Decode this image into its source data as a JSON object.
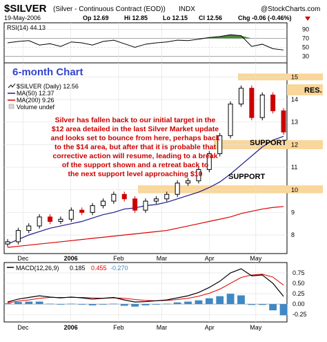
{
  "header": {
    "symbol": "$SILVER",
    "description": "(Silver - Continuous Contract (EOD))",
    "exchange": "INDX",
    "brand": "@StockCharts.com",
    "date": "19-May-2006",
    "open": "Op 12.69",
    "high": "Hi 12.85",
    "low": "Lo 12.15",
    "close": "Cl 12.56",
    "change": "Chg -0.06 (-0.46%)",
    "change_arrow": "down-triangle-icon"
  },
  "rsi": {
    "label": "RSI(14) 44.13",
    "ticks": [
      "90",
      "70",
      "50",
      "30"
    ],
    "tick_values": [
      90,
      70,
      50,
      30
    ],
    "overbought": 70,
    "oversold": 30,
    "fill_color": "#4a8a3c"
  },
  "price": {
    "title_text": "6-month Chart",
    "legend": {
      "main": "$SILVER (Daily) 12.56",
      "ma50": "MA(50) 12.37",
      "ma200": "MA(200) 9.26",
      "volume": "Volume undef"
    },
    "ticks": [
      "15",
      "14",
      "13",
      "12",
      "11",
      "10",
      "9",
      "8"
    ],
    "tick_values": [
      15,
      14,
      13,
      12,
      11,
      10,
      9,
      8
    ],
    "ylim": [
      7.3,
      15.5
    ],
    "res_label": "RES.",
    "support_labels": [
      "SUPPORT",
      "SUPPORT"
    ],
    "bands": [
      {
        "from": 14.85,
        "to": 15.15,
        "color": "#f9d69a"
      },
      {
        "from": 11.8,
        "to": 12.2,
        "color": "#f9d69a"
      },
      {
        "from": 9.85,
        "to": 10.2,
        "color": "#f9d69a"
      }
    ],
    "commentary": [
      "Silver has fallen back to our initial target in the",
      "$12 area detailed in the last Silver Market update",
      "and looks set to bounce from here, perhaps back",
      "to the $14 area, but after that it is probable that",
      "corrective action will resume, leading to a break",
      "of the support shown and a retreat  back to",
      "the next support level approaching $10"
    ],
    "colors": {
      "up": "#000000",
      "down": "#cc0000",
      "ma50": "#1a1a8c",
      "ma200": "#dd0000"
    }
  },
  "macd": {
    "label_prefix": "MACD(12,26,9)",
    "macd_value": "0.185",
    "signal_value": "0.455",
    "hist_value": "-0.270",
    "ticks": [
      "0.75",
      "0.50",
      "0.25",
      "0.00",
      "-0.25"
    ],
    "tick_values": [
      0.75,
      0.5,
      0.25,
      0.0,
      -0.25
    ],
    "ylim": [
      -0.38,
      0.95
    ],
    "colors": {
      "macd": "#000000",
      "signal": "#dd0000",
      "hist": "#3f88c5"
    }
  },
  "x_axis": {
    "labels": [
      "Dec",
      "2006",
      "Feb",
      "Mar",
      "Apr",
      "May"
    ],
    "bold": [
      false,
      true,
      false,
      false,
      false,
      false
    ]
  },
  "chart_data": {
    "type": "line",
    "x": [
      "2005-11-21",
      "2005-11-28",
      "2005-12-05",
      "2005-12-12",
      "2005-12-19",
      "2005-12-27",
      "2006-01-03",
      "2006-01-09",
      "2006-01-17",
      "2006-01-23",
      "2006-01-30",
      "2006-02-06",
      "2006-02-13",
      "2006-02-21",
      "2006-02-27",
      "2006-03-06",
      "2006-03-13",
      "2006-03-20",
      "2006-03-27",
      "2006-04-03",
      "2006-04-10",
      "2006-04-17",
      "2006-04-24",
      "2006-05-01",
      "2006-05-08",
      "2006-05-15",
      "2006-05-19"
    ],
    "series": [
      {
        "name": "$SILVER (Daily) 12.56",
        "values": [
          7.7,
          8.2,
          8.4,
          8.8,
          8.6,
          8.7,
          9.1,
          9.0,
          9.3,
          9.5,
          9.8,
          9.6,
          9.1,
          9.5,
          9.6,
          9.8,
          10.3,
          10.4,
          10.9,
          11.6,
          12.4,
          13.8,
          14.5,
          13.2,
          14.2,
          13.5,
          12.56
        ]
      },
      {
        "name": "MA(50) 12.37",
        "values": [
          7.6,
          7.8,
          8.0,
          8.15,
          8.3,
          8.4,
          8.5,
          8.6,
          8.75,
          8.9,
          9.0,
          9.15,
          9.2,
          9.3,
          9.35,
          9.45,
          9.6,
          9.75,
          9.9,
          10.1,
          10.35,
          10.7,
          11.1,
          11.5,
          11.9,
          12.2,
          12.37
        ]
      },
      {
        "name": "MA(200) 9.26",
        "values": [
          7.45,
          7.5,
          7.55,
          7.6,
          7.65,
          7.7,
          7.75,
          7.8,
          7.85,
          7.9,
          7.95,
          8.0,
          8.05,
          8.1,
          8.15,
          8.2,
          8.3,
          8.4,
          8.5,
          8.6,
          8.7,
          8.8,
          8.95,
          9.05,
          9.15,
          9.22,
          9.26
        ]
      }
    ],
    "rsi_values": [
      60,
      63,
      65,
      55,
      58,
      52,
      62,
      60,
      55,
      63,
      66,
      58,
      50,
      57,
      60,
      62,
      66,
      65,
      68,
      72,
      74,
      78,
      76,
      52,
      57,
      47,
      44.13
    ],
    "macd_values": [
      0.05,
      0.12,
      0.16,
      0.2,
      0.17,
      0.15,
      0.17,
      0.15,
      0.12,
      0.14,
      0.16,
      0.1,
      0.05,
      0.06,
      0.08,
      0.1,
      0.15,
      0.2,
      0.28,
      0.4,
      0.55,
      0.75,
      0.85,
      0.68,
      0.7,
      0.5,
      0.185
    ],
    "signal_values": [
      0.03,
      0.07,
      0.1,
      0.14,
      0.16,
      0.16,
      0.16,
      0.16,
      0.15,
      0.14,
      0.15,
      0.14,
      0.11,
      0.09,
      0.08,
      0.09,
      0.11,
      0.14,
      0.19,
      0.26,
      0.36,
      0.5,
      0.64,
      0.7,
      0.72,
      0.65,
      0.455
    ],
    "xlabel": "",
    "ylabel": "",
    "ylim": [
      7.3,
      15.5
    ],
    "grid": true
  }
}
